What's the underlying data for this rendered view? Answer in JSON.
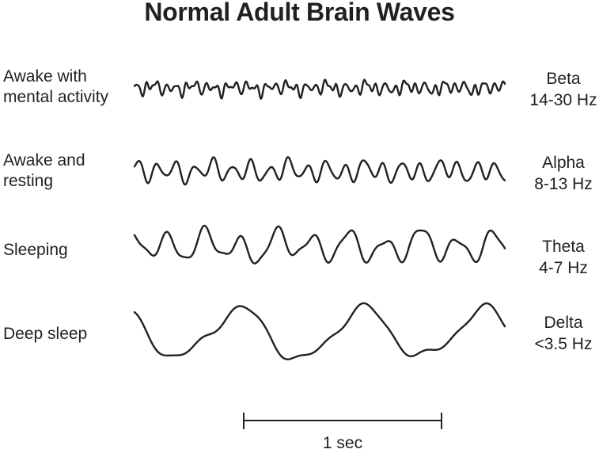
{
  "title": "Normal Adult Brain Waves",
  "ink_color": "#231f20",
  "background_color": "#ffffff",
  "rows": [
    {
      "state_lines": [
        "Awake with",
        "mental activity"
      ],
      "band": "Beta",
      "range": "14-30 Hz",
      "wave_synthesis": {
        "components": [
          [
            5.5,
            37.3,
            0
          ],
          [
            3.2,
            19.1,
            1.7
          ],
          [
            2.4,
            56.3,
            3.1
          ],
          [
            1.8,
            8.7,
            5.0
          ],
          [
            1.2,
            66.4,
            0.7
          ]
        ]
      }
    },
    {
      "state_lines": [
        "Awake and",
        "resting"
      ],
      "band": "Alpha",
      "range": "8-13 Hz",
      "wave_synthesis": {
        "components": [
          [
            10.5,
            19.7,
            0.3
          ],
          [
            4,
            9.4,
            2.2
          ],
          [
            2.6,
            30.7,
            4.0
          ],
          [
            1.6,
            4.9,
            1.0
          ]
        ]
      }
    },
    {
      "state_lines": [
        "Sleeping"
      ],
      "band": "Theta",
      "range": "4-7 Hz",
      "wave_synthesis": {
        "components": [
          [
            16,
            10.25,
            2.0
          ],
          [
            6,
            5.35,
            0.7
          ],
          [
            4.5,
            19.6,
            3.6
          ],
          [
            2.5,
            3.1,
            5.1
          ]
        ]
      }
    },
    {
      "state_lines": [
        "Deep sleep"
      ],
      "band": "Delta",
      "range": "<3.5 Hz",
      "wave_synthesis": {
        "components": [
          [
            31,
            3.03,
            2.45
          ],
          [
            6.5,
            6.2,
            2.0
          ],
          [
            2.8,
            11.7,
            0.6
          ],
          [
            2,
            1.6,
            0.3
          ]
        ]
      }
    }
  ],
  "scale_bar": {
    "label": "1 sec"
  },
  "chart_data": {
    "type": "line",
    "title": "Normal Adult Brain Waves",
    "x_axis": {
      "scale_bar_label": "1 sec",
      "visible_window_seconds": 1.9
    },
    "legend_position": "right",
    "series": [
      {
        "name": "Beta",
        "condition": "Awake with mental activity",
        "frequency_range_hz": "14-30",
        "relative_amplitude": "low",
        "approx_cycles_shown": 37
      },
      {
        "name": "Alpha",
        "condition": "Awake and resting",
        "frequency_range_hz": "8-13",
        "relative_amplitude": "medium",
        "approx_cycles_shown": 20
      },
      {
        "name": "Theta",
        "condition": "Sleeping",
        "frequency_range_hz": "4-7",
        "relative_amplitude": "high",
        "approx_cycles_shown": 10
      },
      {
        "name": "Delta",
        "condition": "Deep sleep",
        "frequency_range_hz": "<3.5",
        "relative_amplitude": "highest",
        "approx_cycles_shown": 3
      }
    ]
  }
}
